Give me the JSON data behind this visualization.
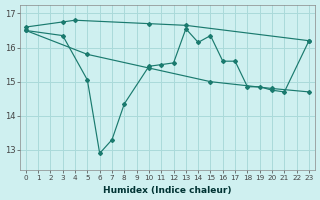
{
  "line1_x": [
    0,
    3,
    4,
    10,
    13,
    23
  ],
  "line1_y": [
    16.6,
    16.75,
    16.8,
    16.7,
    16.65,
    16.2
  ],
  "line2_x": [
    0,
    5,
    10,
    15,
    20,
    23
  ],
  "line2_y": [
    16.5,
    15.8,
    15.4,
    15.0,
    14.8,
    14.7
  ],
  "line3_x": [
    0,
    3,
    5,
    6,
    7,
    8,
    10,
    11,
    12,
    13,
    14,
    15,
    16,
    17,
    18,
    19,
    20,
    21,
    23
  ],
  "line3_y": [
    16.5,
    16.35,
    15.05,
    12.9,
    13.3,
    14.35,
    15.45,
    15.5,
    15.55,
    16.55,
    16.15,
    16.35,
    15.6,
    15.6,
    14.85,
    14.85,
    14.75,
    14.7,
    16.2
  ],
  "bg_color": "#cff0f0",
  "grid_color": "#aadada",
  "line_color": "#1a7a6e",
  "xlim": [
    -0.5,
    23.5
  ],
  "ylim": [
    12.4,
    17.25
  ],
  "yticks": [
    13,
    14,
    15,
    16,
    17
  ],
  "xticks": [
    0,
    1,
    2,
    3,
    4,
    5,
    6,
    7,
    8,
    9,
    10,
    11,
    12,
    13,
    14,
    15,
    16,
    17,
    18,
    19,
    20,
    21,
    22,
    23
  ],
  "xlabel": "Humidex (Indice chaleur)"
}
